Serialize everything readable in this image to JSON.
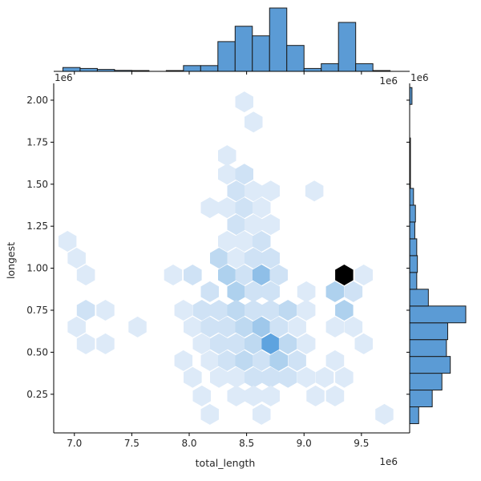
{
  "chart_data": {
    "type": "hexbin-jointplot",
    "xlabel": "total_length",
    "ylabel": "longest",
    "x_offset_label": "1e6",
    "y_offset_label": "1e6",
    "xlim": [
      6.82,
      9.92
    ],
    "ylim": [
      0.02,
      2.1
    ],
    "x_ticks": [
      7.0,
      7.5,
      8.0,
      8.5,
      9.0,
      9.5
    ],
    "x_tick_labels": [
      "7.0",
      "7.5",
      "8.0",
      "8.5",
      "9.0",
      "9.5"
    ],
    "y_ticks": [
      0.25,
      0.5,
      0.75,
      1.0,
      1.25,
      1.5,
      1.75,
      2.0
    ],
    "y_tick_labels": [
      "0.25",
      "0.50",
      "0.75",
      "1.00",
      "1.25",
      "1.50",
      "1.75",
      "2.00"
    ],
    "grid": false,
    "colors": {
      "hist_fill": "#5b9bd5",
      "hist_edge": "#1a1a1a",
      "hex_max": "#000000",
      "hex_high": "#2a86d3",
      "hex_mid": "#7fb7e6",
      "hex_low": "#deebf7"
    },
    "hexbins": [
      {
        "x": 8.48,
        "y": 1.99,
        "count": 1
      },
      {
        "x": 8.56,
        "y": 1.87,
        "count": 1
      },
      {
        "x": 8.33,
        "y": 1.67,
        "count": 1
      },
      {
        "x": 8.33,
        "y": 1.56,
        "count": 1
      },
      {
        "x": 8.48,
        "y": 1.56,
        "count": 2
      },
      {
        "x": 8.41,
        "y": 1.46,
        "count": 2
      },
      {
        "x": 8.56,
        "y": 1.46,
        "count": 1
      },
      {
        "x": 8.71,
        "y": 1.46,
        "count": 1
      },
      {
        "x": 9.09,
        "y": 1.46,
        "count": 1
      },
      {
        "x": 8.18,
        "y": 1.36,
        "count": 1
      },
      {
        "x": 8.33,
        "y": 1.36,
        "count": 1
      },
      {
        "x": 8.48,
        "y": 1.36,
        "count": 2
      },
      {
        "x": 8.63,
        "y": 1.36,
        "count": 1
      },
      {
        "x": 8.41,
        "y": 1.26,
        "count": 2
      },
      {
        "x": 8.56,
        "y": 1.26,
        "count": 1
      },
      {
        "x": 8.71,
        "y": 1.26,
        "count": 1
      },
      {
        "x": 6.94,
        "y": 1.16,
        "count": 1
      },
      {
        "x": 8.33,
        "y": 1.16,
        "count": 1
      },
      {
        "x": 8.48,
        "y": 1.16,
        "count": 1
      },
      {
        "x": 8.63,
        "y": 1.16,
        "count": 2
      },
      {
        "x": 7.02,
        "y": 1.06,
        "count": 1
      },
      {
        "x": 8.26,
        "y": 1.06,
        "count": 3
      },
      {
        "x": 8.41,
        "y": 1.06,
        "count": 1
      },
      {
        "x": 8.56,
        "y": 1.06,
        "count": 2
      },
      {
        "x": 8.71,
        "y": 1.06,
        "count": 2
      },
      {
        "x": 7.1,
        "y": 0.96,
        "count": 1
      },
      {
        "x": 7.86,
        "y": 0.96,
        "count": 1
      },
      {
        "x": 8.03,
        "y": 0.96,
        "count": 2
      },
      {
        "x": 8.33,
        "y": 0.96,
        "count": 4
      },
      {
        "x": 8.48,
        "y": 0.96,
        "count": 2
      },
      {
        "x": 8.63,
        "y": 0.96,
        "count": 6
      },
      {
        "x": 8.78,
        "y": 0.96,
        "count": 2
      },
      {
        "x": 9.35,
        "y": 0.96,
        "count": 13
      },
      {
        "x": 9.52,
        "y": 0.96,
        "count": 1
      },
      {
        "x": 8.18,
        "y": 0.86,
        "count": 2
      },
      {
        "x": 8.41,
        "y": 0.86,
        "count": 4
      },
      {
        "x": 8.56,
        "y": 0.86,
        "count": 2
      },
      {
        "x": 8.71,
        "y": 0.86,
        "count": 2
      },
      {
        "x": 9.02,
        "y": 0.86,
        "count": 1
      },
      {
        "x": 9.27,
        "y": 0.86,
        "count": 4
      },
      {
        "x": 9.43,
        "y": 0.86,
        "count": 2
      },
      {
        "x": 7.1,
        "y": 0.75,
        "count": 2
      },
      {
        "x": 7.27,
        "y": 0.75,
        "count": 1
      },
      {
        "x": 7.95,
        "y": 0.75,
        "count": 1
      },
      {
        "x": 8.11,
        "y": 0.75,
        "count": 2
      },
      {
        "x": 8.26,
        "y": 0.75,
        "count": 2
      },
      {
        "x": 8.41,
        "y": 0.75,
        "count": 3
      },
      {
        "x": 8.56,
        "y": 0.75,
        "count": 2
      },
      {
        "x": 8.71,
        "y": 0.75,
        "count": 2
      },
      {
        "x": 8.86,
        "y": 0.75,
        "count": 3
      },
      {
        "x": 9.02,
        "y": 0.75,
        "count": 1
      },
      {
        "x": 9.35,
        "y": 0.75,
        "count": 4
      },
      {
        "x": 7.02,
        "y": 0.65,
        "count": 1
      },
      {
        "x": 7.55,
        "y": 0.65,
        "count": 1
      },
      {
        "x": 8.03,
        "y": 0.65,
        "count": 1
      },
      {
        "x": 8.18,
        "y": 0.65,
        "count": 2
      },
      {
        "x": 8.33,
        "y": 0.65,
        "count": 2
      },
      {
        "x": 8.48,
        "y": 0.65,
        "count": 3
      },
      {
        "x": 8.63,
        "y": 0.65,
        "count": 5
      },
      {
        "x": 8.78,
        "y": 0.65,
        "count": 2
      },
      {
        "x": 8.94,
        "y": 0.65,
        "count": 1
      },
      {
        "x": 9.27,
        "y": 0.65,
        "count": 1
      },
      {
        "x": 9.43,
        "y": 0.65,
        "count": 1
      },
      {
        "x": 7.1,
        "y": 0.55,
        "count": 1
      },
      {
        "x": 7.27,
        "y": 0.55,
        "count": 1
      },
      {
        "x": 8.11,
        "y": 0.55,
        "count": 1
      },
      {
        "x": 8.26,
        "y": 0.55,
        "count": 2
      },
      {
        "x": 8.41,
        "y": 0.55,
        "count": 2
      },
      {
        "x": 8.56,
        "y": 0.55,
        "count": 3
      },
      {
        "x": 8.71,
        "y": 0.55,
        "count": 9
      },
      {
        "x": 8.86,
        "y": 0.55,
        "count": 3
      },
      {
        "x": 9.02,
        "y": 0.55,
        "count": 1
      },
      {
        "x": 9.52,
        "y": 0.55,
        "count": 1
      },
      {
        "x": 7.95,
        "y": 0.45,
        "count": 1
      },
      {
        "x": 8.18,
        "y": 0.45,
        "count": 1
      },
      {
        "x": 8.33,
        "y": 0.45,
        "count": 2
      },
      {
        "x": 8.48,
        "y": 0.45,
        "count": 3
      },
      {
        "x": 8.63,
        "y": 0.45,
        "count": 2
      },
      {
        "x": 8.78,
        "y": 0.45,
        "count": 4
      },
      {
        "x": 8.94,
        "y": 0.45,
        "count": 2
      },
      {
        "x": 9.27,
        "y": 0.45,
        "count": 1
      },
      {
        "x": 8.03,
        "y": 0.35,
        "count": 1
      },
      {
        "x": 8.26,
        "y": 0.35,
        "count": 1
      },
      {
        "x": 8.41,
        "y": 0.35,
        "count": 1
      },
      {
        "x": 8.56,
        "y": 0.35,
        "count": 2
      },
      {
        "x": 8.71,
        "y": 0.35,
        "count": 2
      },
      {
        "x": 8.86,
        "y": 0.35,
        "count": 2
      },
      {
        "x": 9.02,
        "y": 0.35,
        "count": 1
      },
      {
        "x": 9.18,
        "y": 0.35,
        "count": 1
      },
      {
        "x": 9.35,
        "y": 0.35,
        "count": 1
      },
      {
        "x": 8.11,
        "y": 0.24,
        "count": 1
      },
      {
        "x": 8.41,
        "y": 0.24,
        "count": 1
      },
      {
        "x": 8.56,
        "y": 0.24,
        "count": 1
      },
      {
        "x": 8.71,
        "y": 0.24,
        "count": 1
      },
      {
        "x": 9.1,
        "y": 0.24,
        "count": 1
      },
      {
        "x": 9.27,
        "y": 0.24,
        "count": 1
      },
      {
        "x": 8.18,
        "y": 0.13,
        "count": 1
      },
      {
        "x": 8.63,
        "y": 0.13,
        "count": 1
      },
      {
        "x": 9.7,
        "y": 0.13,
        "count": 1
      }
    ],
    "hex_max_count": 13,
    "x_histogram": {
      "bins": [
        [
          6.9,
          7.05
        ],
        [
          7.05,
          7.2
        ],
        [
          7.2,
          7.35
        ],
        [
          7.35,
          7.5
        ],
        [
          7.5,
          7.65
        ],
        [
          7.65,
          7.8
        ],
        [
          7.8,
          7.95
        ],
        [
          7.95,
          8.1
        ],
        [
          8.1,
          8.25
        ],
        [
          8.25,
          8.4
        ],
        [
          8.4,
          8.55
        ],
        [
          8.55,
          8.7
        ],
        [
          8.7,
          8.85
        ],
        [
          8.85,
          9.0
        ],
        [
          9.0,
          9.15
        ],
        [
          9.15,
          9.3
        ],
        [
          9.3,
          9.45
        ],
        [
          9.45,
          9.6
        ],
        [
          9.6,
          9.75
        ],
        [
          9.75,
          9.9
        ]
      ],
      "counts": [
        2,
        1.5,
        1,
        0.5,
        0.3,
        0,
        0.3,
        3,
        3,
        15.5,
        23.5,
        18.5,
        33,
        13.5,
        1.5,
        4,
        25.5,
        4,
        0.3,
        0
      ],
      "max": 33
    },
    "y_histogram": {
      "bins": [
        [
          0.075,
          0.175
        ],
        [
          0.175,
          0.275
        ],
        [
          0.275,
          0.375
        ],
        [
          0.375,
          0.475
        ],
        [
          0.475,
          0.575
        ],
        [
          0.575,
          0.675
        ],
        [
          0.675,
          0.775
        ],
        [
          0.775,
          0.875
        ],
        [
          0.875,
          0.975
        ],
        [
          0.975,
          1.075
        ],
        [
          1.075,
          1.175
        ],
        [
          1.175,
          1.275
        ],
        [
          1.275,
          1.375
        ],
        [
          1.375,
          1.475
        ],
        [
          1.475,
          1.575
        ],
        [
          1.575,
          1.675
        ],
        [
          1.675,
          1.775
        ],
        [
          1.775,
          1.875
        ],
        [
          1.875,
          1.975
        ],
        [
          1.975,
          2.075
        ]
      ],
      "counts": [
        7,
        17.5,
        25,
        31.5,
        28.5,
        29.5,
        43.5,
        14.5,
        5.5,
        6,
        5.5,
        4,
        4.5,
        3,
        0.5,
        0.3,
        0.3,
        0,
        0,
        1.8
      ],
      "max": 43.5
    }
  }
}
